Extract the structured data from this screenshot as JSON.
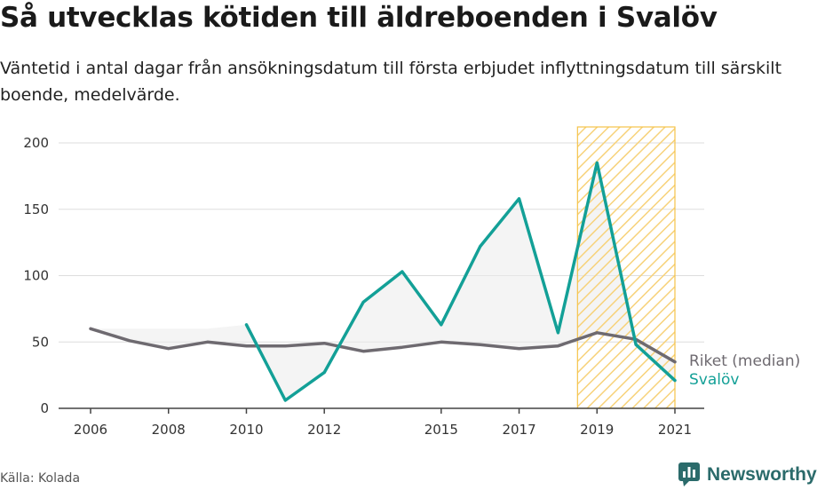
{
  "title": "Så utvecklas kötiden till äldreboenden i Svalöv",
  "subtitle": "Väntetid i antal dagar från ansökningsdatum till första erbjudet inflyttningsdatum till särskilt boende, medelvärde.",
  "source": "Källa: Kolada",
  "brand": "Newsworthy",
  "colors": {
    "riket": "#6e6a70",
    "svalov": "#13a097",
    "highlight": "#f5c34a",
    "fill": "#ebebeb"
  },
  "chart_data": {
    "type": "line",
    "x": [
      2006,
      2007,
      2008,
      2009,
      2010,
      2011,
      2012,
      2013,
      2014,
      2015,
      2016,
      2017,
      2018,
      2019,
      2020,
      2021
    ],
    "xticks": [
      "2006",
      "2008",
      "2010",
      "2012",
      "2015",
      "2017",
      "2019",
      "2021"
    ],
    "xtick_values": [
      2006,
      2008,
      2010,
      2012,
      2015,
      2017,
      2019,
      2021
    ],
    "yticks": [
      "0",
      "50",
      "100",
      "150",
      "200"
    ],
    "ylim": [
      0,
      200
    ],
    "highlight_range": [
      2018.5,
      2021
    ],
    "series": [
      {
        "name": "Riket (median)",
        "key": "riket",
        "values": [
          60,
          51,
          45,
          50,
          47,
          47,
          49,
          43,
          46,
          50,
          48,
          45,
          47,
          57,
          52,
          35
        ]
      },
      {
        "name": "Svalöv",
        "key": "svalov",
        "values": [
          null,
          null,
          null,
          null,
          63,
          6,
          27,
          80,
          103,
          63,
          122,
          158,
          57,
          185,
          48,
          21
        ]
      }
    ]
  }
}
